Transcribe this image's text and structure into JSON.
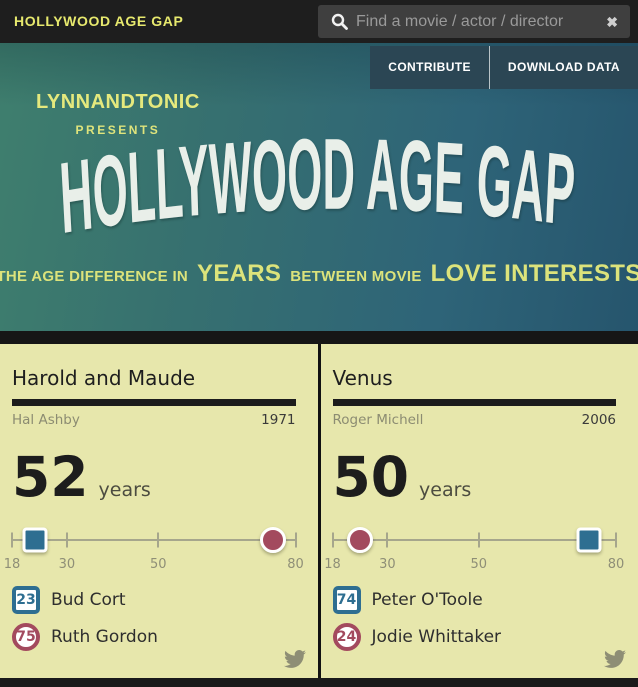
{
  "topbar": {
    "brand": "HOLLYWOOD AGE GAP",
    "search_placeholder": "Find a movie / actor / director"
  },
  "header": {
    "contribute_label": "CONTRIBUTE",
    "download_label": "DOWNLOAD DATA",
    "presenter": "LYNNANDTONIC",
    "presents": "PRESENTS",
    "logo": "HOLLYWOOD AGE GAP",
    "tagline": {
      "part1": "THE AGE DIFFERENCE IN",
      "emph1": "YEARS",
      "part2": "BETWEEN MOVIE",
      "emph2": "LOVE INTERESTS"
    }
  },
  "icons": {
    "search": "magnifier-icon",
    "clear": "x-close-icon",
    "clear_glyph": "✖",
    "share": "twitter-bird-icon"
  },
  "colors": {
    "brand_yellow": "#e7e96e",
    "header_yellow": "#dce37b",
    "logo_white": "#e9efe9",
    "card_background": "#e7e7ac",
    "marker_blue": "#2e6e91",
    "marker_maroon": "#a34a5e",
    "button_background": "#2b4654"
  },
  "slider": {
    "min": 18,
    "max": 80,
    "tick_values": [
      18,
      30,
      50,
      80
    ],
    "tick_labels": [
      "18",
      "30",
      "50",
      "80"
    ]
  },
  "movies": [
    {
      "title": "Harold and Maude",
      "director": "Hal Ashby",
      "year": "1971",
      "gap": "52",
      "gap_unit": "years",
      "actors": [
        {
          "age": 23,
          "name": "Bud Cort",
          "shape": "square"
        },
        {
          "age": 75,
          "name": "Ruth Gordon",
          "shape": "circle"
        }
      ]
    },
    {
      "title": "Venus",
      "director": "Roger Michell",
      "year": "2006",
      "gap": "50",
      "gap_unit": "years",
      "actors": [
        {
          "age": 74,
          "name": "Peter O'Toole",
          "shape": "square"
        },
        {
          "age": 24,
          "name": "Jodie Whittaker",
          "shape": "circle"
        }
      ]
    }
  ]
}
